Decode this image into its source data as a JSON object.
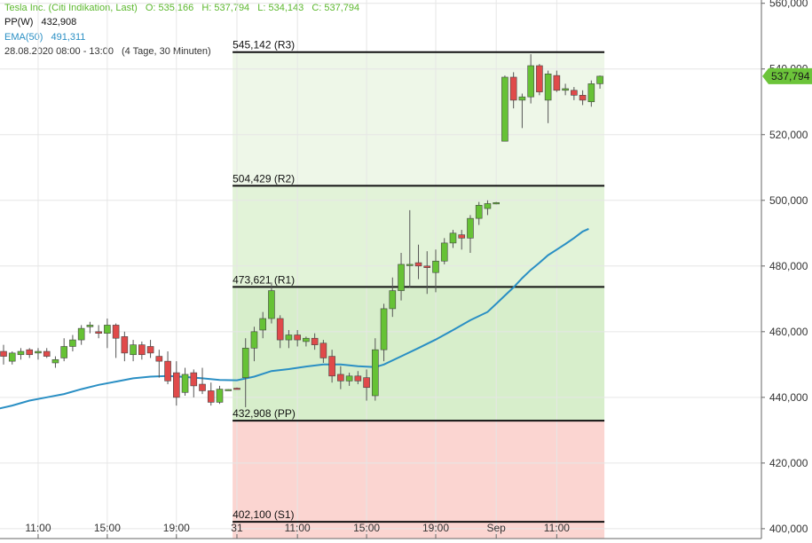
{
  "header": {
    "title": "Tesla Inc. (Citi Indikation, Last)",
    "open": "O: 535,166",
    "high": "H: 537,794",
    "low": "L: 534,143",
    "close": "C: 537,794",
    "pp_label": "PP(W)",
    "pp_value": "432,908",
    "ema_label": "EMA(50)",
    "ema_value": "491,311",
    "range": "28.08.2020 08:00 - 13:00",
    "period": "(4 Tage, 30 Minuten)"
  },
  "colors": {
    "title_green": "#5cb82e",
    "ema_blue": "#2a8fc4",
    "candle_up": "#66c235",
    "candle_down": "#e04a4a",
    "zone_r3": "#eef7e8",
    "zone_r2": "#e2f3d8",
    "zone_r1": "#d7eecb",
    "zone_support": "#fbd5d1",
    "last_price_tag": "#6cc43a"
  },
  "last_price_label": "537,794",
  "chart_data": {
    "type": "candlestick",
    "ylim": [
      397000,
      561000
    ],
    "y_ticks": [
      {
        "value": 400000,
        "label": "400,000"
      },
      {
        "value": 420000,
        "label": "420,000"
      },
      {
        "value": 440000,
        "label": "440,000"
      },
      {
        "value": 460000,
        "label": "460,000"
      },
      {
        "value": 480000,
        "label": "480,000"
      },
      {
        "value": 500000,
        "label": "500,000"
      },
      {
        "value": 520000,
        "label": "520,000"
      },
      {
        "value": 540000,
        "label": "540,000"
      },
      {
        "value": 560000,
        "label": "560,000"
      }
    ],
    "x_ticks": [
      {
        "index": 4,
        "label": "11:00"
      },
      {
        "index": 12,
        "label": "15:00"
      },
      {
        "index": 20,
        "label": "19:00"
      },
      {
        "index": 27,
        "label": "31"
      },
      {
        "index": 34,
        "label": "11:00"
      },
      {
        "index": 42,
        "label": "15:00"
      },
      {
        "index": 50,
        "label": "19:00"
      },
      {
        "index": 57,
        "label": "Sep"
      },
      {
        "index": 64,
        "label": "11:00"
      }
    ],
    "pivot_levels": [
      {
        "name": "R3",
        "value": 545142,
        "label": "545,142 (R3)"
      },
      {
        "name": "R2",
        "value": 504429,
        "label": "504,429 (R2)"
      },
      {
        "name": "R1",
        "value": 473621,
        "label": "473,621 (R1)"
      },
      {
        "name": "PP",
        "value": 432908,
        "label": "432,908 (PP)"
      },
      {
        "name": "S1",
        "value": 402100,
        "label": "402,100 (S1)"
      }
    ],
    "pivot_start_index": 26.5,
    "candles": [
      {
        "o": 454000,
        "h": 456000,
        "l": 450000,
        "c": 452500
      },
      {
        "o": 451000,
        "h": 454000,
        "l": 450000,
        "c": 453500
      },
      {
        "o": 453000,
        "h": 455000,
        "l": 451500,
        "c": 454000
      },
      {
        "o": 454500,
        "h": 455000,
        "l": 452000,
        "c": 453000
      },
      {
        "o": 453500,
        "h": 455000,
        "l": 451500,
        "c": 454000
      },
      {
        "o": 454000,
        "h": 455000,
        "l": 452000,
        "c": 452500
      },
      {
        "o": 450500,
        "h": 452500,
        "l": 449000,
        "c": 451500
      },
      {
        "o": 452000,
        "h": 458000,
        "l": 451000,
        "c": 455500
      },
      {
        "o": 455500,
        "h": 459000,
        "l": 454000,
        "c": 457500
      },
      {
        "o": 457500,
        "h": 462000,
        "l": 456000,
        "c": 461000
      },
      {
        "o": 461500,
        "h": 463000,
        "l": 459500,
        "c": 462000
      },
      {
        "o": 460000,
        "h": 462000,
        "l": 458000,
        "c": 459500
      },
      {
        "o": 459500,
        "h": 464000,
        "l": 455000,
        "c": 462000
      },
      {
        "o": 462000,
        "h": 462500,
        "l": 452000,
        "c": 458000
      },
      {
        "o": 458500,
        "h": 460000,
        "l": 451000,
        "c": 453500
      },
      {
        "o": 453000,
        "h": 457500,
        "l": 451000,
        "c": 456000
      },
      {
        "o": 456000,
        "h": 457000,
        "l": 451500,
        "c": 453000
      },
      {
        "o": 455500,
        "h": 457500,
        "l": 452000,
        "c": 453500
      },
      {
        "o": 452500,
        "h": 454500,
        "l": 446000,
        "c": 451000
      },
      {
        "o": 451000,
        "h": 454000,
        "l": 444000,
        "c": 445000
      },
      {
        "o": 447500,
        "h": 451000,
        "l": 437500,
        "c": 440000
      },
      {
        "o": 441500,
        "h": 449000,
        "l": 440500,
        "c": 447000
      },
      {
        "o": 447500,
        "h": 448500,
        "l": 440000,
        "c": 443500
      },
      {
        "o": 444000,
        "h": 449000,
        "l": 441000,
        "c": 442000
      },
      {
        "o": 442000,
        "h": 444500,
        "l": 437500,
        "c": 438500
      },
      {
        "o": 438500,
        "h": 443500,
        "l": 438000,
        "c": 442500
      },
      {
        "o": 442300,
        "h": 442500,
        "l": 442000,
        "c": 442400
      },
      {
        "o": 442800,
        "h": 443000,
        "l": 442500,
        "c": 442600
      },
      {
        "o": 446000,
        "h": 458000,
        "l": 437000,
        "c": 455000
      },
      {
        "o": 455000,
        "h": 461500,
        "l": 451000,
        "c": 460000
      },
      {
        "o": 460500,
        "h": 466000,
        "l": 458000,
        "c": 464000
      },
      {
        "o": 464000,
        "h": 475000,
        "l": 462500,
        "c": 472500
      },
      {
        "o": 464000,
        "h": 465000,
        "l": 455000,
        "c": 457500
      },
      {
        "o": 457500,
        "h": 460500,
        "l": 455000,
        "c": 459000
      },
      {
        "o": 459000,
        "h": 460500,
        "l": 455500,
        "c": 457500
      },
      {
        "o": 457000,
        "h": 458500,
        "l": 455500,
        "c": 458000
      },
      {
        "o": 458000,
        "h": 459500,
        "l": 454500,
        "c": 456000
      },
      {
        "o": 456500,
        "h": 457500,
        "l": 450500,
        "c": 452000
      },
      {
        "o": 452500,
        "h": 454500,
        "l": 444500,
        "c": 446500
      },
      {
        "o": 447000,
        "h": 449500,
        "l": 442500,
        "c": 445000
      },
      {
        "o": 445000,
        "h": 447500,
        "l": 443500,
        "c": 446500
      },
      {
        "o": 446500,
        "h": 448000,
        "l": 444000,
        "c": 445000
      },
      {
        "o": 446000,
        "h": 448500,
        "l": 439000,
        "c": 443000
      },
      {
        "o": 440500,
        "h": 458000,
        "l": 439000,
        "c": 454500
      },
      {
        "o": 454500,
        "h": 468500,
        "l": 451000,
        "c": 467000
      },
      {
        "o": 467000,
        "h": 476500,
        "l": 464500,
        "c": 472500
      },
      {
        "o": 472500,
        "h": 484000,
        "l": 469500,
        "c": 480500
      },
      {
        "o": 480500,
        "h": 497000,
        "l": 473500,
        "c": 480500
      },
      {
        "o": 481000,
        "h": 486500,
        "l": 476000,
        "c": 480000
      },
      {
        "o": 480000,
        "h": 484500,
        "l": 471500,
        "c": 479500
      },
      {
        "o": 478000,
        "h": 485000,
        "l": 472000,
        "c": 481500
      },
      {
        "o": 481500,
        "h": 488500,
        "l": 480500,
        "c": 487000
      },
      {
        "o": 487000,
        "h": 491000,
        "l": 485500,
        "c": 490000
      },
      {
        "o": 489500,
        "h": 491000,
        "l": 485000,
        "c": 488500
      },
      {
        "o": 488500,
        "h": 495500,
        "l": 484000,
        "c": 494500
      },
      {
        "o": 494500,
        "h": 499500,
        "l": 492500,
        "c": 498500
      },
      {
        "o": 497500,
        "h": 500000,
        "l": 495500,
        "c": 499000
      },
      {
        "o": 499200,
        "h": 499500,
        "l": 498800,
        "c": 499300
      },
      {
        "o": 518000,
        "h": 538000,
        "l": 518000,
        "c": 537500
      },
      {
        "o": 537500,
        "h": 539000,
        "l": 528000,
        "c": 530500
      },
      {
        "o": 530500,
        "h": 532500,
        "l": 522000,
        "c": 531500
      },
      {
        "o": 531500,
        "h": 544500,
        "l": 529500,
        "c": 541000
      },
      {
        "o": 541000,
        "h": 541500,
        "l": 532000,
        "c": 533000
      },
      {
        "o": 530500,
        "h": 539500,
        "l": 523500,
        "c": 538500
      },
      {
        "o": 538000,
        "h": 539500,
        "l": 533000,
        "c": 533500
      },
      {
        "o": 533500,
        "h": 535500,
        "l": 532000,
        "c": 534000
      },
      {
        "o": 533500,
        "h": 534500,
        "l": 530500,
        "c": 532000
      },
      {
        "o": 532000,
        "h": 533500,
        "l": 529000,
        "c": 530500
      },
      {
        "o": 530000,
        "h": 536500,
        "l": 528500,
        "c": 535500
      },
      {
        "o": 535500,
        "h": 538000,
        "l": 534000,
        "c": 537794
      }
    ],
    "ema_series": {
      "name": "EMA(50)",
      "points": [
        {
          "i": -1.5,
          "v": 436000
        },
        {
          "i": 1,
          "v": 437500
        },
        {
          "i": 3,
          "v": 439000
        },
        {
          "i": 5,
          "v": 440000
        },
        {
          "i": 7,
          "v": 441000
        },
        {
          "i": 9,
          "v": 442500
        },
        {
          "i": 11,
          "v": 443800
        },
        {
          "i": 13,
          "v": 444800
        },
        {
          "i": 15,
          "v": 445800
        },
        {
          "i": 17,
          "v": 446300
        },
        {
          "i": 19,
          "v": 446500
        },
        {
          "i": 21,
          "v": 446200
        },
        {
          "i": 23,
          "v": 445800
        },
        {
          "i": 25,
          "v": 445300
        },
        {
          "i": 27,
          "v": 445200
        },
        {
          "i": 29,
          "v": 446300
        },
        {
          "i": 31,
          "v": 448000
        },
        {
          "i": 33,
          "v": 448600
        },
        {
          "i": 35,
          "v": 449400
        },
        {
          "i": 37,
          "v": 450000
        },
        {
          "i": 39,
          "v": 450000
        },
        {
          "i": 41,
          "v": 449500
        },
        {
          "i": 43,
          "v": 449200
        },
        {
          "i": 44,
          "v": 450000
        },
        {
          "i": 46,
          "v": 452500
        },
        {
          "i": 48,
          "v": 455000
        },
        {
          "i": 50,
          "v": 457600
        },
        {
          "i": 52,
          "v": 460500
        },
        {
          "i": 54,
          "v": 463500
        },
        {
          "i": 56,
          "v": 466000
        },
        {
          "i": 57,
          "v": 468500
        },
        {
          "i": 58,
          "v": 471000
        },
        {
          "i": 59,
          "v": 473500
        },
        {
          "i": 60,
          "v": 476300
        },
        {
          "i": 61,
          "v": 478800
        },
        {
          "i": 62,
          "v": 481000
        },
        {
          "i": 63,
          "v": 483300
        },
        {
          "i": 64,
          "v": 485000
        },
        {
          "i": 65,
          "v": 486700
        },
        {
          "i": 66,
          "v": 488500
        },
        {
          "i": 67,
          "v": 490500
        },
        {
          "i": 67.7,
          "v": 491311
        }
      ]
    },
    "last_value": 537794
  }
}
